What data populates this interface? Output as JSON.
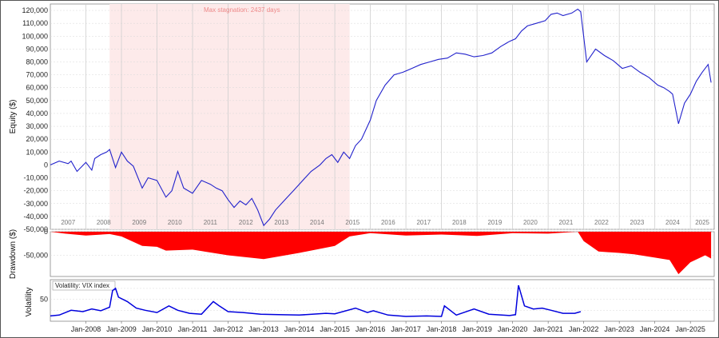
{
  "chart_data": [
    {
      "type": "line",
      "panel": "equity",
      "ylabel": "Equity ($)",
      "ylim": [
        -50000,
        125000
      ],
      "yticks": [
        120000,
        110000,
        100000,
        90000,
        80000,
        70000,
        60000,
        50000,
        40000,
        30000,
        20000,
        10000,
        0,
        -10000,
        -20000,
        -30000,
        -40000,
        -50000
      ],
      "ytick_labels": [
        "120,000",
        "110,000",
        "100,000",
        "90,000",
        "80,000",
        "70,000",
        "60,000",
        "50,000",
        "40,000",
        "30,000",
        "20,000",
        "10,000",
        "0",
        "-10,000",
        "-20,000",
        "-30,000",
        "-40,000",
        "-50,000"
      ],
      "year_labels": [
        "2007",
        "2008",
        "2009",
        "2010",
        "2011",
        "2012",
        "2013",
        "2014",
        "2015",
        "2016",
        "2017",
        "2018",
        "2019",
        "2020",
        "2021",
        "2022",
        "2023",
        "2024",
        "2025"
      ],
      "annotation": "Max stagnation: 2437 days",
      "stagnation_period": [
        "2008-09",
        "2015-06"
      ],
      "color": "#2222cc",
      "series": [
        {
          "x": [
            "2007-01",
            "2007-04",
            "2007-07",
            "2007-08",
            "2007-10",
            "2008-01",
            "2008-03",
            "2008-04",
            "2008-06",
            "2008-08",
            "2008-09",
            "2008-11",
            "2009-01",
            "2009-03",
            "2009-05",
            "2009-08",
            "2009-10",
            "2010-01",
            "2010-04",
            "2010-06",
            "2010-08",
            "2010-10",
            "2011-01",
            "2011-04",
            "2011-07",
            "2011-09",
            "2011-11",
            "2012-01",
            "2012-03",
            "2012-05",
            "2012-07",
            "2012-09",
            "2012-11",
            "2013-01",
            "2013-03",
            "2013-05",
            "2013-07",
            "2013-09",
            "2013-11",
            "2014-01",
            "2014-03",
            "2014-05",
            "2014-08",
            "2014-10",
            "2014-12",
            "2015-02",
            "2015-04",
            "2015-06",
            "2015-08",
            "2015-10",
            "2016-01",
            "2016-03",
            "2016-06",
            "2016-09",
            "2016-12",
            "2017-03",
            "2017-06",
            "2017-09",
            "2017-12",
            "2018-03",
            "2018-06",
            "2018-09",
            "2018-12",
            "2019-03",
            "2019-06",
            "2019-09",
            "2019-12",
            "2020-02",
            "2020-04",
            "2020-06",
            "2020-09",
            "2020-12",
            "2021-02",
            "2021-04",
            "2021-06",
            "2021-09",
            "2021-11",
            "2021-12",
            "2022-02",
            "2022-05",
            "2022-08",
            "2022-11",
            "2023-02",
            "2023-05",
            "2023-08",
            "2023-11",
            "2024-02",
            "2024-04",
            "2024-06",
            "2024-07",
            "2024-09",
            "2024-11",
            "2025-01",
            "2025-03",
            "2025-05",
            "2025-07",
            "2025-08"
          ],
          "y": [
            0,
            3000,
            1000,
            3000,
            -5000,
            2000,
            -4000,
            5000,
            8000,
            10000,
            12000,
            -2000,
            10000,
            3000,
            -1000,
            -18000,
            -10000,
            -12000,
            -25000,
            -20000,
            -5000,
            -18000,
            -22000,
            -12000,
            -15000,
            -18000,
            -20000,
            -27000,
            -33000,
            -28000,
            -31000,
            -26000,
            -35000,
            -47000,
            -42000,
            -35000,
            -30000,
            -25000,
            -20000,
            -15000,
            -10000,
            -5000,
            0,
            5000,
            8000,
            2000,
            10000,
            5000,
            15000,
            20000,
            35000,
            50000,
            62000,
            70000,
            72000,
            75000,
            78000,
            80000,
            82000,
            83000,
            87000,
            86000,
            84000,
            85000,
            87000,
            92000,
            96000,
            98000,
            104000,
            108000,
            110000,
            112000,
            117000,
            118000,
            116000,
            118000,
            121000,
            119000,
            80000,
            90000,
            85000,
            81000,
            75000,
            77000,
            72000,
            68000,
            62000,
            60000,
            57000,
            55000,
            32000,
            48000,
            55000,
            65000,
            72000,
            78000,
            64000
          ]
        }
      ]
    },
    {
      "type": "area",
      "panel": "drawdown",
      "ylabel": "Drawdown ($)",
      "ylim": [
        -95000,
        0
      ],
      "yticks": [
        0,
        -50000
      ],
      "ytick_labels": [
        "0",
        "-50,000"
      ],
      "color": "#ff0000",
      "series": [
        {
          "x": [
            "2007-01",
            "2007-06",
            "2008-01",
            "2008-09",
            "2009-01",
            "2009-08",
            "2010-01",
            "2010-04",
            "2011-01",
            "2012-01",
            "2013-01",
            "2014-01",
            "2015-01",
            "2015-06",
            "2016-01",
            "2017-01",
            "2018-01",
            "2019-01",
            "2020-01",
            "2021-01",
            "2021-11",
            "2022-01",
            "2022-06",
            "2023-01",
            "2023-06",
            "2024-01",
            "2024-06",
            "2024-09",
            "2025-01",
            "2025-06",
            "2025-08"
          ],
          "y": [
            0,
            -4000,
            -8000,
            -5000,
            -10000,
            -30000,
            -32000,
            -40000,
            -38000,
            -50000,
            -58000,
            -45000,
            -30000,
            -10000,
            -3000,
            -8000,
            -6000,
            -9000,
            -3000,
            -4000,
            0,
            -20000,
            -42000,
            -45000,
            -48000,
            -55000,
            -60000,
            -90000,
            -65000,
            -50000,
            -57000
          ]
        }
      ]
    },
    {
      "type": "line",
      "panel": "volatility",
      "ylabel": "Volatility",
      "legend": "Volatility: VIX index",
      "ylim": [
        0,
        95
      ],
      "yticks": [
        25,
        50,
        75
      ],
      "ytick_labels": [
        "",
        "50",
        ""
      ],
      "xtick_labels": [
        "Jan-2008",
        "Jan-2009",
        "Jan-2010",
        "Jan-2011",
        "Jan-2012",
        "Jan-2013",
        "Jan-2014",
        "Jan-2015",
        "Jan-2016",
        "Jan-2017",
        "Jan-2018",
        "Jan-2019",
        "Jan-2020",
        "Jan-2021",
        "Jan-2022",
        "Jan-2023",
        "Jan-2024",
        "Jan-2025"
      ],
      "color": "#0000dd",
      "series": [
        {
          "x": [
            "2007-01",
            "2007-04",
            "2007-08",
            "2007-12",
            "2008-03",
            "2008-06",
            "2008-09",
            "2008-10",
            "2008-11",
            "2008-12",
            "2009-03",
            "2009-06",
            "2009-09",
            "2010-01",
            "2010-05",
            "2010-08",
            "2010-12",
            "2011-04",
            "2011-08",
            "2011-10",
            "2012-01",
            "2012-06",
            "2012-12",
            "2013-06",
            "2014-01",
            "2014-10",
            "2015-01",
            "2015-08",
            "2015-12",
            "2016-02",
            "2016-07",
            "2017-01",
            "2017-08",
            "2018-01",
            "2018-02",
            "2018-06",
            "2018-12",
            "2019-05",
            "2019-12",
            "2020-02",
            "2020-03",
            "2020-05",
            "2020-08",
            "2020-11",
            "2021-02",
            "2021-06",
            "2021-10",
            "2021-12"
          ],
          "y": [
            12,
            14,
            25,
            22,
            28,
            24,
            32,
            70,
            75,
            55,
            45,
            30,
            25,
            20,
            35,
            25,
            18,
            16,
            45,
            35,
            22,
            20,
            16,
            15,
            14,
            18,
            17,
            30,
            20,
            24,
            14,
            11,
            12,
            11,
            35,
            14,
            28,
            16,
            13,
            15,
            82,
            35,
            28,
            30,
            25,
            18,
            18,
            22
          ]
        }
      ]
    }
  ]
}
